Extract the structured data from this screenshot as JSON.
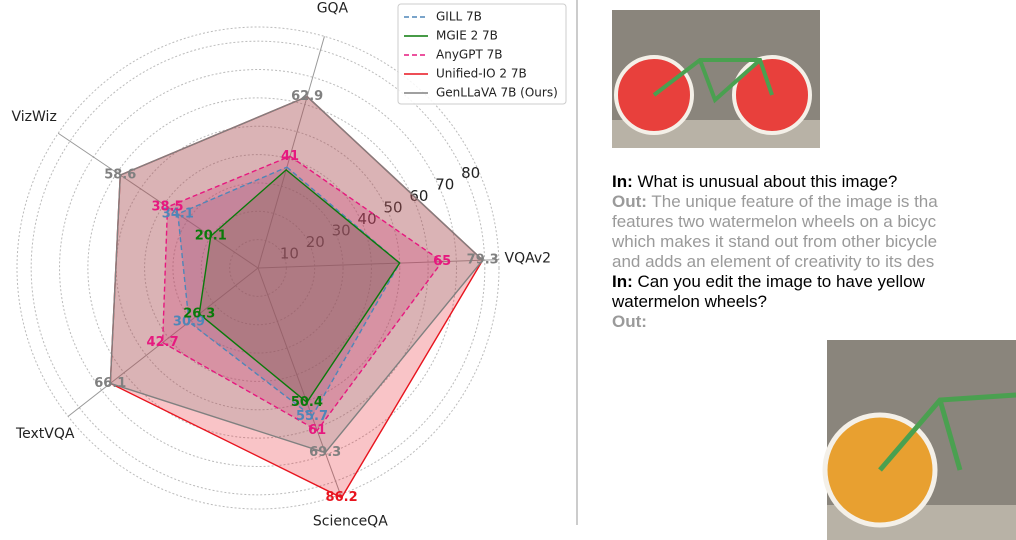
{
  "chart_data": {
    "type": "radar",
    "categories": [
      "GQA",
      "VQAv2",
      "ScienceQA",
      "TextVQA",
      "VizWiz"
    ],
    "rlim": [
      0,
      85
    ],
    "rticks": [
      10,
      20,
      30,
      40,
      50,
      60,
      70,
      80
    ],
    "grid": true,
    "legend": "upper right",
    "series": [
      {
        "name": "GILL 7B",
        "color": "#4f86b8",
        "linestyle": "dashed",
        "values": [
          37,
          50,
          55.7,
          30.9,
          34.1
        ],
        "value_labels": [
          null,
          null,
          "55.7",
          "30.9",
          "34.1"
        ]
      },
      {
        "name": "MGIE 2 7B",
        "color": "#0a7a0a",
        "linestyle": "solid",
        "values": [
          36,
          50,
          50.4,
          26.3,
          20.1
        ],
        "value_labels": [
          null,
          null,
          "50.4",
          "26.3",
          "20.1"
        ]
      },
      {
        "name": "AnyGPT 7B",
        "color": "#e6197f",
        "linestyle": "dashed",
        "values": [
          41,
          65,
          61,
          42.7,
          38.5
        ],
        "value_labels": [
          "41",
          "65",
          "61",
          "42.7",
          "38.5"
        ]
      },
      {
        "name": "Unified-IO 2 7B",
        "color": "#e8141e",
        "linestyle": "solid",
        "values": [
          62.9,
          79.3,
          86.2,
          66.1,
          58.6
        ],
        "value_labels": [
          null,
          null,
          "86.2",
          null,
          null
        ]
      },
      {
        "name": "GenLLaVA 7B (Ours)",
        "color": "#808080",
        "linestyle": "solid",
        "values": [
          62.9,
          79.3,
          69.3,
          66.1,
          58.6
        ],
        "value_labels": [
          "62.9",
          "79.3",
          "69.3",
          "66.1",
          "58.6"
        ]
      }
    ]
  },
  "conversation": {
    "turns": [
      {
        "role": "In:",
        "lines": [
          "What is unusual about this image?"
        ]
      },
      {
        "role": "Out:",
        "lines": [
          "The unique feature of the image is tha",
          "features two watermelon wheels on a bicyc",
          "which makes it stand out from other bicycle",
          "and adds an element of creativity to its des"
        ]
      },
      {
        "role": "In:",
        "lines": [
          "Can you edit the image to have yellow",
          "watermelon wheels?"
        ]
      },
      {
        "role": "Out:",
        "lines": []
      }
    ]
  }
}
